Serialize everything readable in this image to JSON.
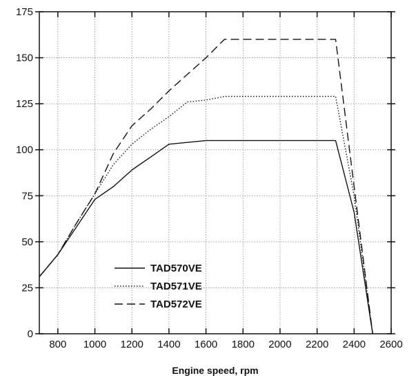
{
  "chart_data": {
    "type": "line",
    "xlabel": "Engine speed, rpm",
    "ylabel": "",
    "xlim": [
      700,
      2600
    ],
    "ylim": [
      0,
      175
    ],
    "xticks": [
      800,
      1000,
      1200,
      1400,
      1600,
      1800,
      2000,
      2200,
      2400,
      2600
    ],
    "yticks": [
      0,
      25,
      50,
      75,
      100,
      125,
      150,
      175
    ],
    "grid": true,
    "legend_position": "bottom-left",
    "series": [
      {
        "name": "TAD570VE",
        "style": "solid",
        "color": "#111111",
        "points": [
          [
            700,
            31
          ],
          [
            800,
            43
          ],
          [
            900,
            58
          ],
          [
            1000,
            73
          ],
          [
            1100,
            80
          ],
          [
            1200,
            89
          ],
          [
            1300,
            96
          ],
          [
            1400,
            103
          ],
          [
            1500,
            104
          ],
          [
            1600,
            105
          ],
          [
            1700,
            105
          ],
          [
            2000,
            105
          ],
          [
            2300,
            105
          ],
          [
            2400,
            66
          ],
          [
            2500,
            0
          ]
        ]
      },
      {
        "name": "TAD571VE",
        "style": "dotted",
        "color": "#111111",
        "points": [
          [
            700,
            31
          ],
          [
            800,
            43
          ],
          [
            900,
            60
          ],
          [
            1000,
            76
          ],
          [
            1100,
            92
          ],
          [
            1200,
            103
          ],
          [
            1300,
            111
          ],
          [
            1400,
            118
          ],
          [
            1500,
            126
          ],
          [
            1600,
            127
          ],
          [
            1700,
            129
          ],
          [
            2000,
            129
          ],
          [
            2300,
            129
          ],
          [
            2400,
            75
          ],
          [
            2500,
            0
          ]
        ]
      },
      {
        "name": "TAD572VE",
        "style": "dashed",
        "color": "#111111",
        "points": [
          [
            700,
            31
          ],
          [
            800,
            43
          ],
          [
            900,
            60
          ],
          [
            1000,
            76
          ],
          [
            1100,
            98
          ],
          [
            1200,
            113
          ],
          [
            1300,
            122
          ],
          [
            1400,
            132
          ],
          [
            1500,
            141
          ],
          [
            1600,
            150
          ],
          [
            1700,
            160
          ],
          [
            2000,
            160
          ],
          [
            2300,
            160
          ],
          [
            2400,
            80
          ],
          [
            2500,
            0
          ]
        ]
      }
    ]
  }
}
